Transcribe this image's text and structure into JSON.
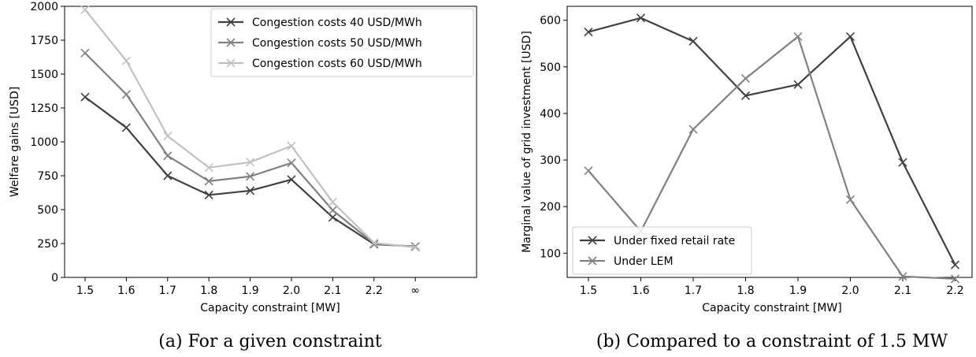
{
  "chart_data": [
    {
      "type": "line",
      "caption": "(a) For a given constraint",
      "xlabel": "Capacity constraint [MW]",
      "ylabel": "Welfare gains [USD]",
      "categories": [
        "1.5",
        "1.6",
        "1.7",
        "1.8",
        "1.9",
        "2.0",
        "2.1",
        "2.2",
        "∞"
      ],
      "ylim": [
        0,
        2000
      ],
      "yticks": [
        0,
        250,
        500,
        750,
        1000,
        1250,
        1500,
        1750,
        2000
      ],
      "legend_position": "top-right",
      "grid": false,
      "series": [
        {
          "name": "Congestion costs 40 USD/MWh",
          "color": "#404040",
          "marker": "x",
          "values": [
            1330,
            1105,
            750,
            608,
            640,
            722,
            443,
            245,
            228
          ]
        },
        {
          "name": "Congestion costs 50 USD/MWh",
          "color": "#808080",
          "marker": "x",
          "values": [
            1655,
            1350,
            897,
            710,
            745,
            845,
            495,
            250,
            225
          ]
        },
        {
          "name": "Congestion costs 60 USD/MWh",
          "color": "#c0c0c0",
          "marker": "x",
          "values": [
            1975,
            1598,
            1043,
            810,
            850,
            970,
            555,
            255,
            222
          ]
        }
      ]
    },
    {
      "type": "line",
      "caption": "(b) Compared to a constraint of 1.5 MW",
      "xlabel": "Capacity constraint [MW]",
      "ylabel": "Marginal value of grid investment [USD]",
      "categories": [
        "1.5",
        "1.6",
        "1.7",
        "1.8",
        "1.9",
        "2.0",
        "2.1",
        "2.2"
      ],
      "ylim": [
        48,
        630
      ],
      "yticks": [
        100,
        200,
        300,
        400,
        500,
        600
      ],
      "legend_position": "bottom-left",
      "grid": false,
      "series": [
        {
          "name": "Under fixed retail rate",
          "color": "#404040",
          "marker": "x",
          "values": [
            575,
            605,
            555,
            438,
            462,
            565,
            295,
            75
          ]
        },
        {
          "name": "Under LEM",
          "color": "#808080",
          "marker": "x",
          "values": [
            277,
            147,
            366,
            475,
            565,
            215,
            50,
            45
          ]
        }
      ]
    }
  ]
}
